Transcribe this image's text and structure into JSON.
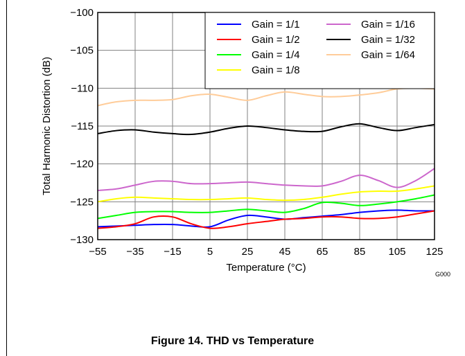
{
  "figure_caption": "Figure 14. THD vs Temperature",
  "figure_code": "G000",
  "colors": {
    "grid": "#808080",
    "frame": "#000000"
  },
  "chart_data": {
    "type": "line",
    "title": "",
    "xlabel": "Temperature (°C)",
    "ylabel": "Total Harmonic Distortion (dB)",
    "xlim": [
      -55,
      125
    ],
    "ylim": [
      -130,
      -100
    ],
    "xticks": [
      -55,
      -35,
      -15,
      5,
      25,
      45,
      65,
      85,
      105,
      125
    ],
    "yticks": [
      -100,
      -105,
      -110,
      -115,
      -120,
      -125,
      -130
    ],
    "xtick_labels": [
      "−55",
      "−35",
      "−15",
      "5",
      "25",
      "45",
      "65",
      "85",
      "105",
      "125"
    ],
    "ytick_labels": [
      "−100",
      "−105",
      "−110",
      "−115",
      "−120",
      "−125",
      "−130"
    ],
    "grid": true,
    "legend_position": "top-right",
    "x": [
      -55,
      -45,
      -35,
      -25,
      -15,
      -5,
      5,
      15,
      25,
      35,
      45,
      55,
      65,
      75,
      85,
      95,
      105,
      115,
      125
    ],
    "series": [
      {
        "name": "Gain = 1/1",
        "color": "#0000ff",
        "values": [
          -128.3,
          -128.2,
          -128.1,
          -128.0,
          -128.0,
          -128.2,
          -128.3,
          -127.4,
          -126.8,
          -127.0,
          -127.3,
          -127.1,
          -126.9,
          -126.7,
          -126.4,
          -126.2,
          -126.1,
          -126.2,
          -126.2
        ]
      },
      {
        "name": "Gain = 1/2",
        "color": "#ff0000",
        "values": [
          -128.5,
          -128.3,
          -127.9,
          -127.0,
          -127.0,
          -127.9,
          -128.5,
          -128.3,
          -127.9,
          -127.6,
          -127.3,
          -127.2,
          -127.0,
          -127.0,
          -127.2,
          -127.2,
          -127.0,
          -126.6,
          -126.2
        ]
      },
      {
        "name": "Gain = 1/4",
        "color": "#00ff00",
        "values": [
          -127.2,
          -126.8,
          -126.4,
          -126.3,
          -126.3,
          -126.4,
          -126.4,
          -126.2,
          -126.0,
          -126.2,
          -126.4,
          -125.9,
          -125.1,
          -125.2,
          -125.5,
          -125.3,
          -125.0,
          -124.6,
          -124.1
        ]
      },
      {
        "name": "Gain = 1/8",
        "color": "#ffff00",
        "values": [
          -125.0,
          -124.6,
          -124.4,
          -124.5,
          -124.6,
          -124.7,
          -124.7,
          -124.6,
          -124.5,
          -124.7,
          -124.8,
          -124.7,
          -124.4,
          -124.0,
          -123.7,
          -123.6,
          -123.6,
          -123.3,
          -122.9
        ]
      },
      {
        "name": "Gain = 1/16",
        "color": "#cc66cc",
        "values": [
          -123.5,
          -123.3,
          -122.8,
          -122.3,
          -122.3,
          -122.6,
          -122.6,
          -122.5,
          -122.4,
          -122.6,
          -122.8,
          -122.9,
          -122.9,
          -122.3,
          -121.5,
          -122.2,
          -123.1,
          -122.2,
          -120.6
        ]
      },
      {
        "name": "Gain = 1/32",
        "color": "#000000",
        "values": [
          -116.0,
          -115.6,
          -115.5,
          -115.8,
          -116.0,
          -116.1,
          -115.8,
          -115.3,
          -115.0,
          -115.2,
          -115.5,
          -115.7,
          -115.7,
          -115.1,
          -114.7,
          -115.2,
          -115.6,
          -115.2,
          -114.8
        ]
      },
      {
        "name": "Gain = 1/64",
        "color": "#ffcc99",
        "values": [
          -112.3,
          -111.8,
          -111.6,
          -111.6,
          -111.5,
          -111.0,
          -110.8,
          -111.2,
          -111.6,
          -111.0,
          -110.5,
          -110.8,
          -111.1,
          -111.1,
          -110.9,
          -110.6,
          -110.1,
          -110.0,
          -110.1
        ]
      }
    ]
  }
}
